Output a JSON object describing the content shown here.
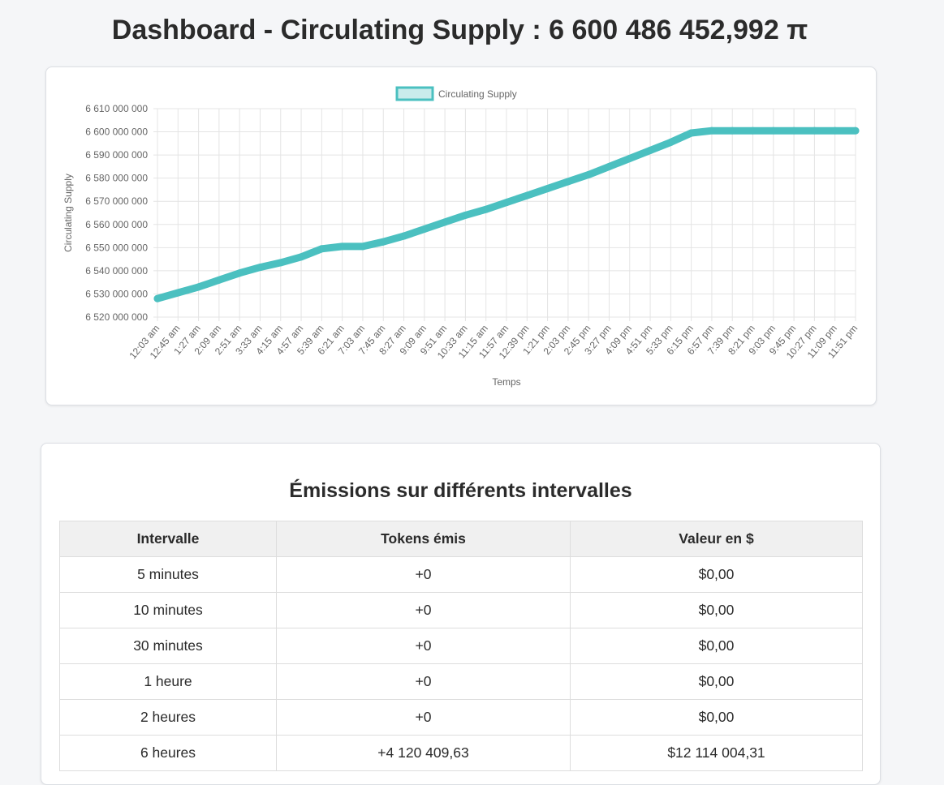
{
  "header": {
    "title": "Dashboard - Circulating Supply : 6 600 486 452,992 π"
  },
  "chart_data": {
    "type": "line",
    "legend": {
      "label": "Circulating Supply",
      "position": "top"
    },
    "xlabel": "Temps",
    "ylabel": "Circulating Supply",
    "ylim": [
      6520000000,
      6610000000
    ],
    "yticks": [
      6520000000,
      6530000000,
      6540000000,
      6550000000,
      6560000000,
      6570000000,
      6580000000,
      6590000000,
      6600000000,
      6610000000
    ],
    "ytick_labels": [
      "6 520 000 000",
      "6 530 000 000",
      "6 540 000 000",
      "6 550 000 000",
      "6 560 000 000",
      "6 570 000 000",
      "6 580 000 000",
      "6 590 000 000",
      "6 600 000 000",
      "6 610 000 000"
    ],
    "xtick_labels": [
      "12:03 am",
      "12:45 am",
      "1:27 am",
      "2:09 am",
      "2:51 am",
      "3:33 am",
      "4:15 am",
      "4:57 am",
      "5:39 am",
      "6:21 am",
      "7:03 am",
      "7:45 am",
      "8:27 am",
      "9:09 am",
      "9:51 am",
      "10:33 am",
      "11:15 am",
      "11:57 am",
      "12:39 pm",
      "1:21 pm",
      "2:03 pm",
      "2:45 pm",
      "3:27 pm",
      "4:09 pm",
      "4:51 pm",
      "5:33 pm",
      "6:15 pm",
      "6:57 pm",
      "7:39 pm",
      "8:21 pm",
      "9:03 pm",
      "9:45 pm",
      "10:27 pm",
      "11:09 pm",
      "11:51 pm"
    ],
    "grid": true,
    "series": [
      {
        "name": "Circulating Supply",
        "color": "#4bc0c0",
        "x": [
          0,
          1,
          2,
          3,
          4,
          5,
          6,
          7,
          8,
          9,
          10,
          11,
          12,
          13,
          14,
          15,
          16,
          17,
          18,
          19,
          20,
          21,
          22,
          23,
          24,
          25,
          26,
          27,
          28,
          29,
          30,
          31,
          32,
          33,
          34
        ],
        "values": [
          6528000000,
          6530500000,
          6533000000,
          6536000000,
          6539000000,
          6541500000,
          6543500000,
          6546000000,
          6549500000,
          6550500000,
          6550500000,
          6552500000,
          6555000000,
          6558000000,
          6561000000,
          6564000000,
          6566500000,
          6569500000,
          6572500000,
          6575500000,
          6578500000,
          6581500000,
          6585000000,
          6588500000,
          6592000000,
          6595500000,
          6599500000,
          6600486453,
          6600486453,
          6600486453,
          6600486453,
          6600486453,
          6600486453,
          6600486453,
          6600486453
        ]
      }
    ]
  },
  "emissions": {
    "title": "Émissions sur différents intervalles",
    "headers": [
      "Intervalle",
      "Tokens émis",
      "Valeur en $"
    ],
    "rows": [
      {
        "interval": "5 minutes",
        "tokens": "+0",
        "value": "$0,00"
      },
      {
        "interval": "10 minutes",
        "tokens": "+0",
        "value": "$0,00"
      },
      {
        "interval": "30 minutes",
        "tokens": "+0",
        "value": "$0,00"
      },
      {
        "interval": "1 heure",
        "tokens": "+0",
        "value": "$0,00"
      },
      {
        "interval": "2 heures",
        "tokens": "+0",
        "value": "$0,00"
      },
      {
        "interval": "6 heures",
        "tokens": "+4 120 409,63",
        "value": "$12 114 004,31"
      }
    ]
  }
}
